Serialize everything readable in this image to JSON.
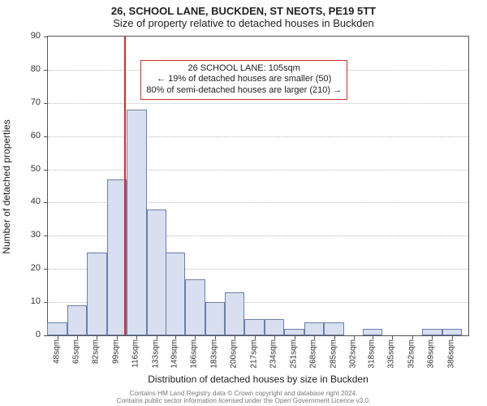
{
  "title1": "26, SCHOOL LANE, BUCKDEN, ST NEOTS, PE19 5TT",
  "title2": "Size of property relative to detached houses in Buckden",
  "y_axis_label": "Number of detached properties",
  "x_axis_label": "Distribution of detached houses by size in Buckden",
  "footer_line1": "Contains HM Land Registry data © Crown copyright and database right 2024.",
  "footer_line2": "Contains public sector information licensed under the Open Government Licence v3.0.",
  "chart": {
    "type": "histogram",
    "ylim": [
      0,
      90
    ],
    "ytick_step": 10,
    "y_ticks": [
      0,
      10,
      20,
      30,
      40,
      50,
      60,
      70,
      80,
      90
    ],
    "x_min": 40,
    "x_max": 400,
    "x_ticks": [
      48,
      65,
      82,
      99,
      116,
      133,
      149,
      166,
      183,
      200,
      217,
      234,
      251,
      268,
      285,
      302,
      318,
      335,
      352,
      369,
      386
    ],
    "x_tick_suffix": "sqm",
    "bar_bin_width": 17,
    "bars": [
      {
        "x": 48,
        "h": 4
      },
      {
        "x": 65,
        "h": 9
      },
      {
        "x": 82,
        "h": 25
      },
      {
        "x": 99,
        "h": 47
      },
      {
        "x": 116,
        "h": 68
      },
      {
        "x": 133,
        "h": 38
      },
      {
        "x": 149,
        "h": 25
      },
      {
        "x": 166,
        "h": 17
      },
      {
        "x": 183,
        "h": 10
      },
      {
        "x": 200,
        "h": 13
      },
      {
        "x": 217,
        "h": 5
      },
      {
        "x": 234,
        "h": 5
      },
      {
        "x": 251,
        "h": 2
      },
      {
        "x": 268,
        "h": 4
      },
      {
        "x": 285,
        "h": 4
      },
      {
        "x": 302,
        "h": 0
      },
      {
        "x": 318,
        "h": 2
      },
      {
        "x": 335,
        "h": 0
      },
      {
        "x": 352,
        "h": 0
      },
      {
        "x": 369,
        "h": 2
      },
      {
        "x": 386,
        "h": 2
      }
    ],
    "bar_fill": "#d7dff0",
    "bar_border": "#6b7fa8",
    "background_color": "#ffffff",
    "grid_color": "#888888",
    "axis_color": "#555555",
    "marker": {
      "x": 105,
      "color": "#d92b2b"
    },
    "annotation": {
      "line1": "26 SCHOOL LANE: 105sqm",
      "line2": "← 19% of detached houses are smaller (50)",
      "line3": "80% of semi-detached houses are larger (210) →",
      "border_color": "#d92b2b",
      "bg": "#ffffff",
      "fontsize": 11,
      "x_center": 208,
      "y_top": 83
    }
  }
}
